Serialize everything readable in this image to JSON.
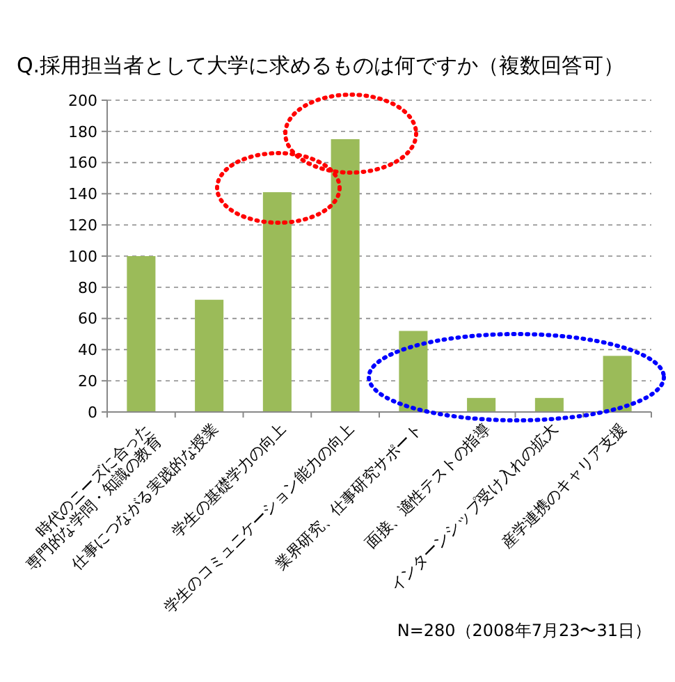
{
  "chart_data": {
    "type": "bar",
    "title": "Q.採用担当者として大学に求めるものは何ですか（複数回答可）",
    "categories": [
      "時代のニーズに合った\n専門的な学問・知識の教育",
      "仕事につながる実践的な授業",
      "学生の基礎学力の向上",
      "学生のコミュニケーション能力の向上",
      "業界研究、仕事研究サポート",
      "面接、適性テストの指導",
      "インターンシップ受け入れの拡大",
      "産学連携のキャリア支援"
    ],
    "values": [
      100,
      72,
      141,
      175,
      52,
      9,
      9,
      36
    ],
    "color": "#9bbb59",
    "ylim": [
      0,
      200
    ],
    "yticks": [
      0,
      20,
      40,
      60,
      80,
      100,
      120,
      140,
      160,
      180,
      200
    ],
    "grid": "y",
    "annotations": [
      "N=280（2008年7月23〜31日）"
    ]
  }
}
